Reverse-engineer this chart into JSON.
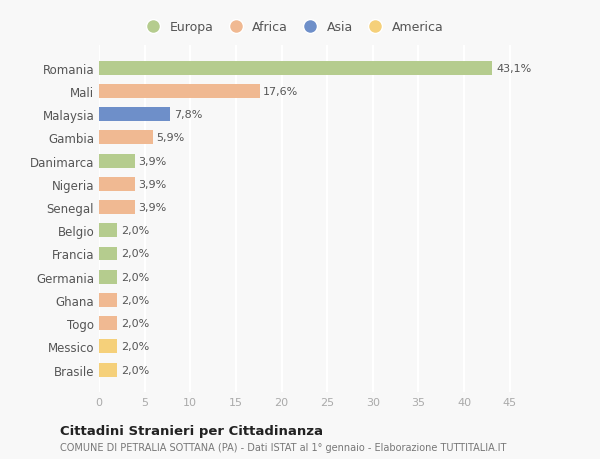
{
  "countries": [
    "Romania",
    "Mali",
    "Malaysia",
    "Gambia",
    "Danimarca",
    "Nigeria",
    "Senegal",
    "Belgio",
    "Francia",
    "Germania",
    "Ghana",
    "Togo",
    "Messico",
    "Brasile"
  ],
  "values": [
    43.1,
    17.6,
    7.8,
    5.9,
    3.9,
    3.9,
    3.9,
    2.0,
    2.0,
    2.0,
    2.0,
    2.0,
    2.0,
    2.0
  ],
  "labels": [
    "43,1%",
    "17,6%",
    "7,8%",
    "5,9%",
    "3,9%",
    "3,9%",
    "3,9%",
    "2,0%",
    "2,0%",
    "2,0%",
    "2,0%",
    "2,0%",
    "2,0%",
    "2,0%"
  ],
  "continents": [
    "Europa",
    "Africa",
    "Asia",
    "Africa",
    "Europa",
    "Africa",
    "Africa",
    "Europa",
    "Europa",
    "Europa",
    "Africa",
    "Africa",
    "America",
    "America"
  ],
  "colors": {
    "Europa": "#b5cc8e",
    "Africa": "#f0b992",
    "Asia": "#6e8fc9",
    "America": "#f5d07a"
  },
  "legend_order": [
    "Europa",
    "Africa",
    "Asia",
    "America"
  ],
  "xlim": [
    0,
    47
  ],
  "xticks": [
    0,
    5,
    10,
    15,
    20,
    25,
    30,
    35,
    40,
    45
  ],
  "title": "Cittadini Stranieri per Cittadinanza",
  "subtitle": "COMUNE DI PETRALIA SOTTANA (PA) - Dati ISTAT al 1° gennaio - Elaborazione TUTTITALIA.IT",
  "background_color": "#f8f8f8",
  "grid_color": "#ffffff",
  "bar_height": 0.6,
  "label_fontsize": 8.0,
  "ytick_fontsize": 8.5,
  "xtick_fontsize": 8.0
}
